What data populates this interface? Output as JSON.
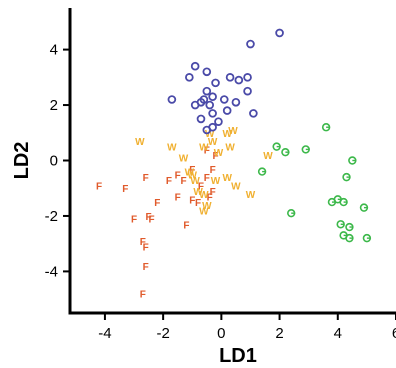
{
  "chart_data": {
    "type": "scatter",
    "title": "",
    "xlabel": "LD1",
    "ylabel": "LD2",
    "xlim": [
      -5.2,
      6
    ],
    "ylim": [
      -5.5,
      5.5
    ],
    "x_ticks": [
      -4,
      -2,
      0,
      2,
      4,
      6
    ],
    "y_ticks": [
      -4,
      -2,
      0,
      2,
      4
    ],
    "x_tick_labels": [
      "-4",
      "-2",
      "0",
      "2",
      "4",
      "6"
    ],
    "y_tick_labels": [
      "-4",
      "-2",
      "0",
      "2",
      "4"
    ],
    "grid": false,
    "legend": "none",
    "series": [
      {
        "marker": "F",
        "color": "#e05a2b",
        "points": [
          [
            -4.2,
            -0.9
          ],
          [
            -3.3,
            -1.0
          ],
          [
            -2.6,
            -0.6
          ],
          [
            -1.8,
            -0.7
          ],
          [
            -1.5,
            -0.5
          ],
          [
            -1.3,
            -0.7
          ],
          [
            -1.0,
            -0.3
          ],
          [
            -0.7,
            -0.9
          ],
          [
            -0.5,
            -0.6
          ],
          [
            -0.3,
            -0.3
          ],
          [
            -0.5,
            0.4
          ],
          [
            -0.2,
            0.2
          ],
          [
            -2.2,
            -1.5
          ],
          [
            -2.5,
            -2.0
          ],
          [
            -3.0,
            -2.1
          ],
          [
            -2.4,
            -2.1
          ],
          [
            -1.5,
            -1.3
          ],
          [
            -1.0,
            -1.4
          ],
          [
            -0.8,
            -1.5
          ],
          [
            -0.4,
            -1.3
          ],
          [
            -0.3,
            -1.1
          ],
          [
            -1.2,
            -2.3
          ],
          [
            -2.7,
            -2.9
          ],
          [
            -2.6,
            -3.1
          ],
          [
            -2.6,
            -3.8
          ],
          [
            -2.7,
            -4.8
          ]
        ]
      },
      {
        "marker": "W",
        "color": "#f0b030",
        "points": [
          [
            -2.8,
            0.7
          ],
          [
            -1.7,
            0.5
          ],
          [
            -1.3,
            0.1
          ],
          [
            -1.0,
            -0.5
          ],
          [
            -0.9,
            -0.7
          ],
          [
            -1.1,
            -0.4
          ],
          [
            -0.6,
            0.5
          ],
          [
            -0.3,
            0.7
          ],
          [
            -0.1,
            0.3
          ],
          [
            0.2,
            1.0
          ],
          [
            0.3,
            0.5
          ],
          [
            0.4,
            1.1
          ],
          [
            -0.4,
            1.0
          ],
          [
            -0.8,
            -1.1
          ],
          [
            -0.6,
            -1.2
          ],
          [
            -0.5,
            -1.6
          ],
          [
            -0.6,
            -1.8
          ],
          [
            -0.2,
            -0.7
          ],
          [
            0.2,
            -0.6
          ],
          [
            0.5,
            -0.9
          ],
          [
            1.0,
            -1.2
          ],
          [
            1.6,
            0.2
          ]
        ]
      },
      {
        "marker": "G",
        "color": "#3cb84a",
        "points": [
          [
            1.9,
            0.5
          ],
          [
            2.2,
            0.3
          ],
          [
            2.9,
            0.4
          ],
          [
            3.6,
            1.2
          ],
          [
            4.5,
            0.0
          ],
          [
            4.3,
            -0.6
          ],
          [
            4.0,
            -1.4
          ],
          [
            3.8,
            -1.5
          ],
          [
            4.2,
            -1.5
          ],
          [
            4.9,
            -1.7
          ],
          [
            2.4,
            -1.9
          ],
          [
            4.1,
            -2.3
          ],
          [
            4.4,
            -2.4
          ],
          [
            4.2,
            -2.7
          ],
          [
            4.4,
            -2.8
          ],
          [
            5.0,
            -2.8
          ],
          [
            1.4,
            -0.4
          ]
        ]
      },
      {
        "marker": "O",
        "color": "#4a4aa8",
        "points": [
          [
            2.0,
            4.6
          ],
          [
            1.0,
            4.2
          ],
          [
            -0.9,
            3.4
          ],
          [
            -0.5,
            3.2
          ],
          [
            -1.1,
            3.0
          ],
          [
            0.3,
            3.0
          ],
          [
            0.6,
            2.9
          ],
          [
            0.9,
            3.0
          ],
          [
            -0.2,
            2.8
          ],
          [
            -0.5,
            2.5
          ],
          [
            0.9,
            2.5
          ],
          [
            -1.7,
            2.2
          ],
          [
            -0.6,
            2.2
          ],
          [
            -0.3,
            2.3
          ],
          [
            0.1,
            2.2
          ],
          [
            -0.4,
            2.0
          ],
          [
            -0.7,
            2.1
          ],
          [
            -0.9,
            2.0
          ],
          [
            0.5,
            2.1
          ],
          [
            -0.3,
            1.7
          ],
          [
            0.2,
            1.8
          ],
          [
            -0.7,
            1.5
          ],
          [
            -0.1,
            1.4
          ],
          [
            1.1,
            1.7
          ],
          [
            -0.3,
            1.2
          ],
          [
            -0.5,
            1.1
          ]
        ]
      }
    ]
  }
}
